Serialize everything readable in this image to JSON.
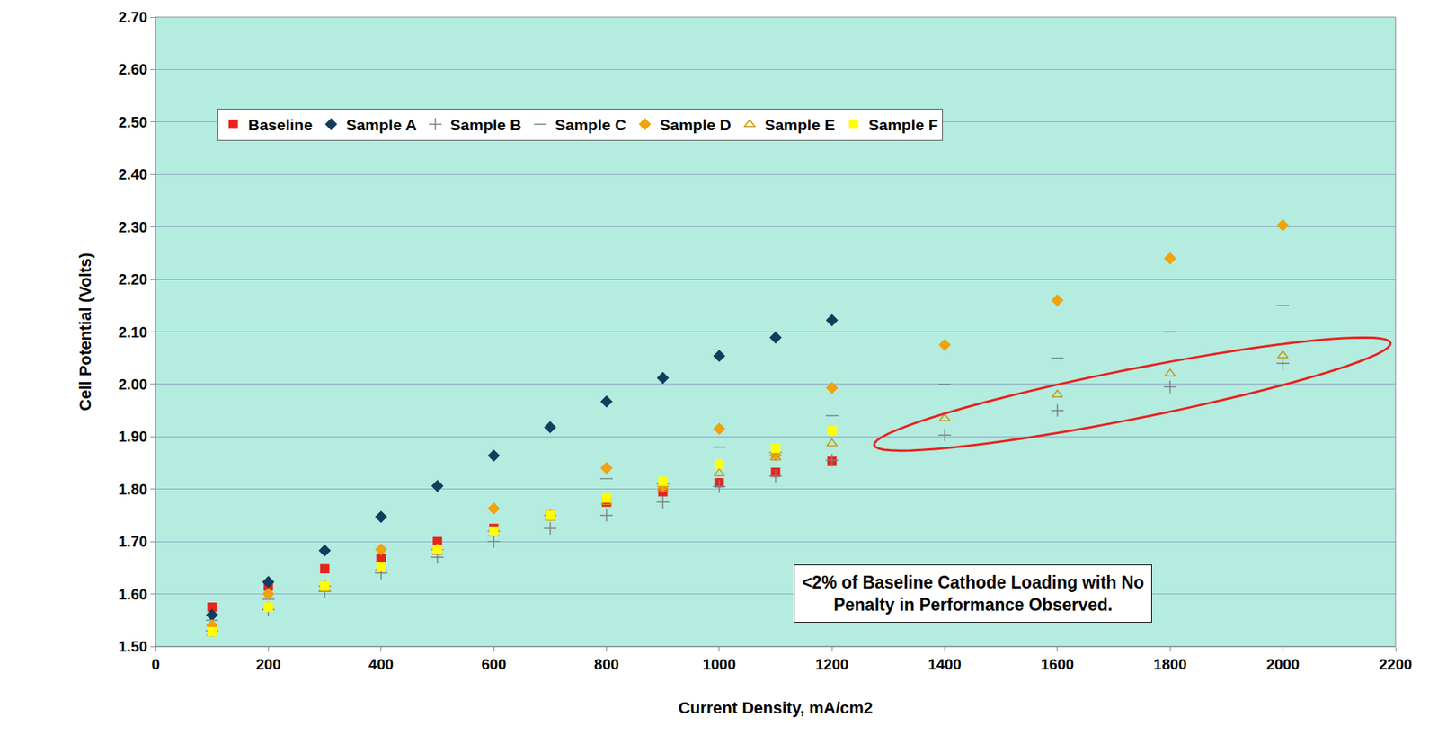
{
  "chart_data": {
    "type": "scatter",
    "x_label": "Current Density, mA/cm2",
    "y_label": "Cell Potential (Volts)",
    "annotation": "<2% of Baseline Cathode Loading with No Penalty in Performance Observed.",
    "xlim": [
      0,
      2200
    ],
    "xticks": [
      0,
      200,
      400,
      600,
      800,
      1000,
      1200,
      1400,
      1600,
      1800,
      2000,
      2200
    ],
    "ylim": [
      1.5,
      2.7
    ],
    "yticks": [
      {
        "value": 1.5,
        "label": "1.50"
      },
      {
        "value": 1.6,
        "label": "1.60"
      },
      {
        "value": 1.7,
        "label": "1.70"
      },
      {
        "value": 1.8,
        "label": "1.80"
      },
      {
        "value": 1.9,
        "label": "1.90"
      },
      {
        "value": 2.0,
        "label": "2.00"
      },
      {
        "value": 2.1,
        "label": "2.10"
      },
      {
        "value": 2.2,
        "label": "2.20"
      },
      {
        "value": 2.3,
        "label": "2.30"
      },
      {
        "value": 2.4,
        "label": "2.40"
      },
      {
        "value": 2.5,
        "label": "2.50"
      },
      {
        "value": 2.6,
        "label": "2.60"
      },
      {
        "value": 2.7,
        "label": "2.70"
      }
    ],
    "grid": true,
    "legend": "top",
    "series": [
      {
        "name": "Baseline",
        "color": "#e8231e",
        "marker": "square",
        "x": [
          100,
          200,
          300,
          400,
          500,
          600,
          700,
          800,
          900,
          1000,
          1100,
          1200
        ],
        "values": [
          1.575,
          1.615,
          1.648,
          1.668,
          1.7,
          1.725,
          1.75,
          1.775,
          1.795,
          1.812,
          1.832,
          1.853
        ]
      },
      {
        "name": "Sample A",
        "color": "#123e5c",
        "marker": "diamond",
        "x": [
          100,
          200,
          300,
          400,
          500,
          600,
          700,
          800,
          900,
          1000,
          1100,
          1200
        ],
        "values": [
          1.56,
          1.623,
          1.683,
          1.747,
          1.806,
          1.864,
          1.918,
          1.967,
          2.012,
          2.054,
          2.089,
          2.122
        ]
      },
      {
        "name": "Sample B",
        "color": "#7f7f7f",
        "marker": "plus",
        "x": [
          100,
          200,
          300,
          400,
          500,
          600,
          700,
          800,
          900,
          1000,
          1100,
          1200,
          1400,
          1600,
          1800,
          2000
        ],
        "values": [
          1.53,
          1.57,
          1.605,
          1.64,
          1.67,
          1.7,
          1.725,
          1.75,
          1.775,
          1.805,
          1.825,
          1.855,
          1.903,
          1.95,
          1.995,
          2.04
        ]
      },
      {
        "name": "Sample C",
        "color": "#6f8a8a",
        "marker": "dash",
        "x": [
          100,
          200,
          300,
          400,
          500,
          600,
          700,
          800,
          900,
          1000,
          1100,
          1200,
          1400,
          1600,
          1800,
          2000
        ],
        "values": [
          1.55,
          1.59,
          1.615,
          1.645,
          1.685,
          1.72,
          1.75,
          1.82,
          1.81,
          1.88,
          1.87,
          1.94,
          2.0,
          2.05,
          2.1,
          2.15
        ]
      },
      {
        "name": "Sample D",
        "color": "#f0a30a",
        "marker": "diamond",
        "x": [
          100,
          200,
          300,
          400,
          500,
          600,
          700,
          800,
          900,
          1000,
          1100,
          1200,
          1400,
          1600,
          1800,
          2000
        ],
        "values": [
          1.54,
          1.6,
          1.615,
          1.685,
          1.685,
          1.763,
          1.75,
          1.84,
          1.805,
          1.915,
          1.865,
          1.993,
          2.075,
          2.16,
          2.24,
          2.303
        ]
      },
      {
        "name": "Sample E",
        "color": "#c8960a",
        "marker": "triangle-open",
        "x": [
          100,
          200,
          300,
          400,
          500,
          600,
          700,
          800,
          900,
          1000,
          1100,
          1200,
          1400,
          1600,
          1800,
          2000
        ],
        "values": [
          1.525,
          1.575,
          1.61,
          1.65,
          1.68,
          1.715,
          1.745,
          1.775,
          1.8,
          1.83,
          1.86,
          1.887,
          1.935,
          1.98,
          2.02,
          2.055
        ]
      },
      {
        "name": "Sample F",
        "color": "#ffff00",
        "marker": "square",
        "x": [
          100,
          200,
          300,
          400,
          500,
          600,
          700,
          800,
          900,
          1000,
          1100,
          1200
        ],
        "values": [
          1.528,
          1.575,
          1.615,
          1.652,
          1.685,
          1.72,
          1.75,
          1.783,
          1.815,
          1.848,
          1.878,
          1.912
        ]
      }
    ]
  }
}
